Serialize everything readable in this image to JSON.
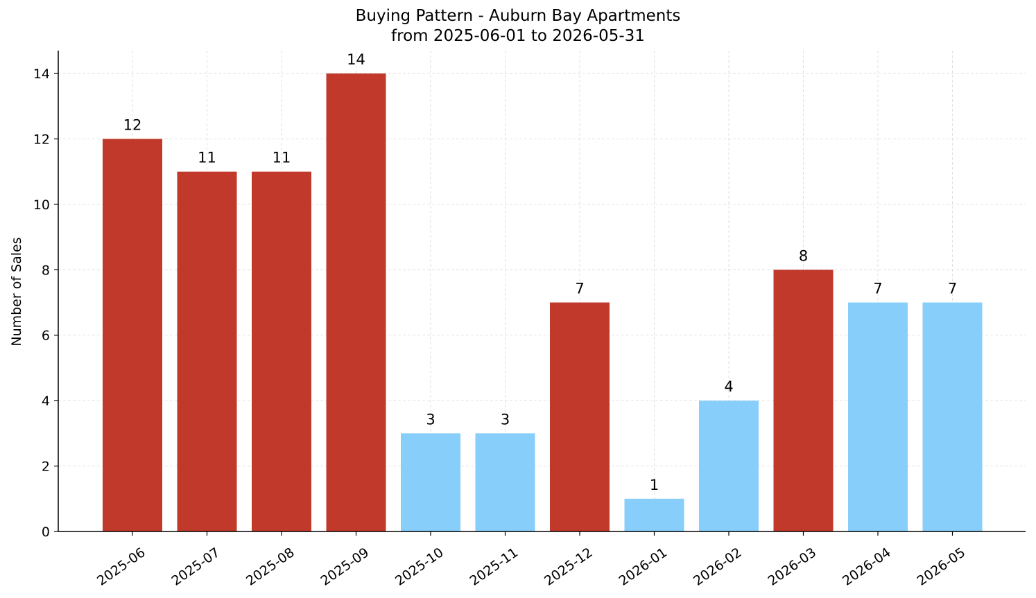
{
  "title_line1": "Buying Pattern - Auburn Bay Apartments",
  "title_line2": "from 2025-06-01 to 2026-05-31",
  "colors": {
    "high": "#C0392B",
    "low": "#87CEFA",
    "grid": "#d9d9d9",
    "axis": "#000000"
  },
  "chart_data": {
    "type": "bar",
    "title": "Buying Pattern - Auburn Bay Apartments from 2025-06-01 to 2026-05-31",
    "xlabel": "",
    "ylabel": "Number of Sales",
    "ylim": [
      0,
      14.7
    ],
    "yticks": [
      0,
      2,
      4,
      6,
      8,
      10,
      12,
      14
    ],
    "grid": true,
    "categories": [
      "2025-06",
      "2025-07",
      "2025-08",
      "2025-09",
      "2025-10",
      "2025-11",
      "2025-12",
      "2026-01",
      "2026-02",
      "2026-03",
      "2026-04",
      "2026-05"
    ],
    "values": [
      12,
      11,
      11,
      14,
      3,
      3,
      7,
      1,
      4,
      8,
      7,
      7
    ],
    "bar_colors": [
      "high",
      "high",
      "high",
      "high",
      "low",
      "low",
      "high",
      "low",
      "low",
      "high",
      "low",
      "low"
    ]
  }
}
